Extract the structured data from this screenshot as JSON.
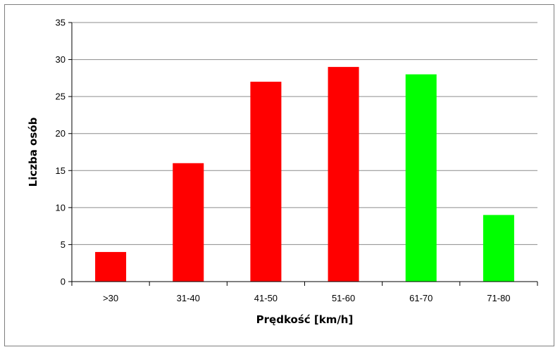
{
  "chart_data": {
    "type": "bar",
    "categories": [
      ">30",
      "31-40",
      "41-50",
      "51-60",
      "61-70",
      "71-80"
    ],
    "values": [
      4,
      16,
      27,
      29,
      28,
      9
    ],
    "bar_colors": [
      "#ff0000",
      "#ff0000",
      "#ff0000",
      "#ff0000",
      "#00ff00",
      "#00ff00"
    ],
    "xlabel": "Prędkość  [km/h]",
    "ylabel": "Liczba osób",
    "ylim": [
      0,
      35
    ],
    "yticks": [
      0,
      5,
      10,
      15,
      20,
      25,
      30,
      35
    ],
    "grid": true
  }
}
